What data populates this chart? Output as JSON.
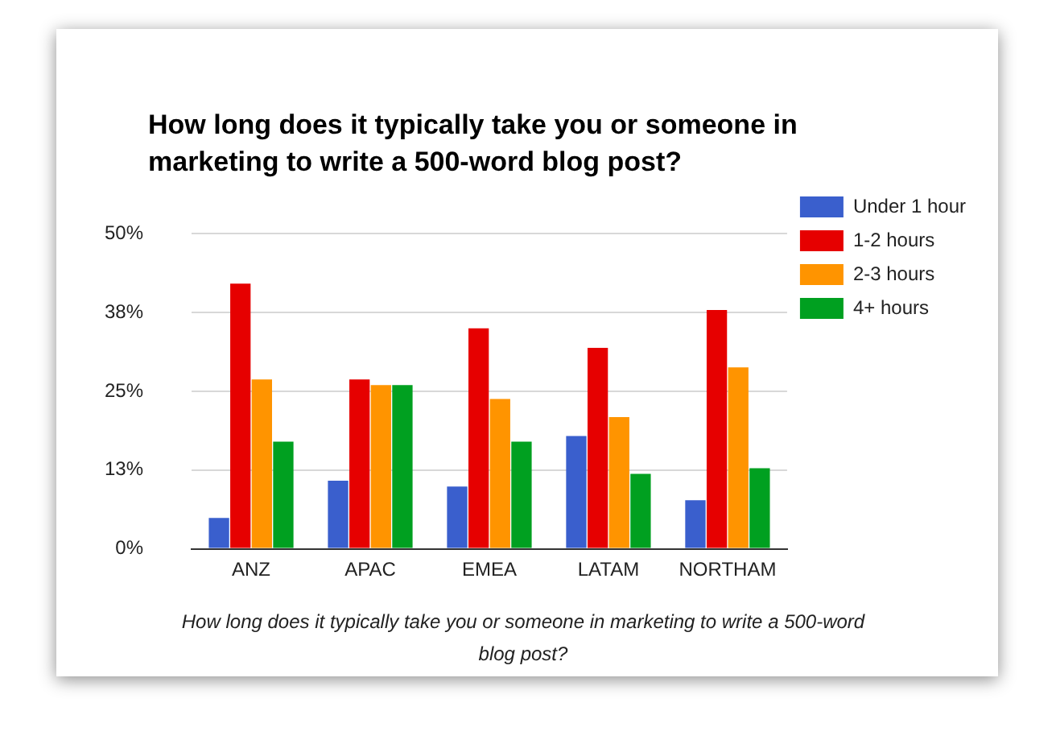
{
  "chart_data": {
    "type": "bar",
    "title": "How long does it typically take you or someone in marketing to write a 500-word blog post?",
    "xlabel": "How long does it typically take you or someone in marketing to write a 500-word blog post?",
    "categories": [
      "ANZ",
      "APAC",
      "EMEA",
      "LATAM",
      "NORTHAM"
    ],
    "series": [
      {
        "name": "Under 1 hour",
        "color": "#3a5fcd",
        "values": [
          4.9,
          10.8,
          9.9,
          17.9,
          7.7
        ]
      },
      {
        "name": "1-2 hours",
        "color": "#e60000",
        "values": [
          42.1,
          26.9,
          35,
          31.9,
          37.9
        ]
      },
      {
        "name": "2-3 hours",
        "color": "#ff9400",
        "values": [
          26.9,
          26,
          23.8,
          20.9,
          28.8
        ]
      },
      {
        "name": "4+ hours",
        "color": "#00a020",
        "values": [
          17,
          26,
          17,
          11.9,
          12.8
        ]
      }
    ],
    "ylim": [
      0,
      50
    ],
    "yticks": [
      {
        "value": 0,
        "label": "0%"
      },
      {
        "value": 12.5,
        "label": "13%"
      },
      {
        "value": 25,
        "label": "25%"
      },
      {
        "value": 37.5,
        "label": "38%"
      },
      {
        "value": 50,
        "label": "50%"
      }
    ],
    "grid": "y",
    "legend": "right"
  }
}
